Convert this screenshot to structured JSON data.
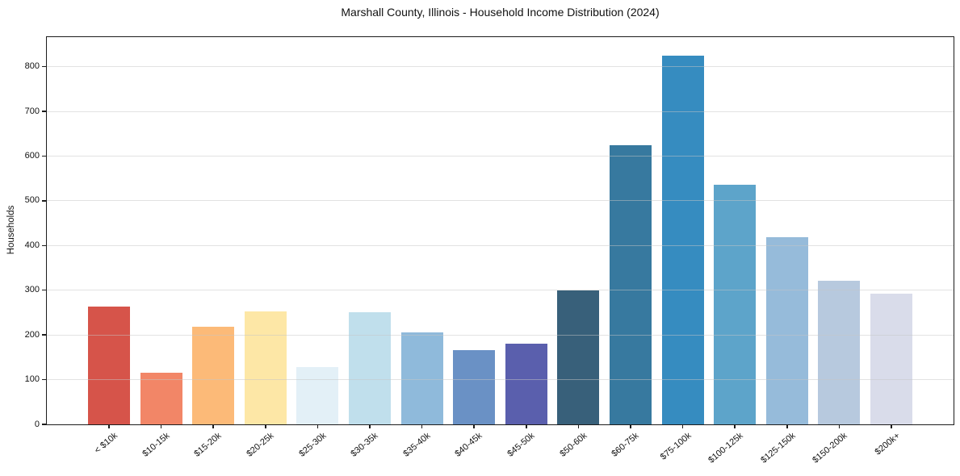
{
  "chart_data": {
    "type": "bar",
    "title": "Marshall County, Illinois - Household Income Distribution (2024)",
    "xlabel": "",
    "ylabel": "Households",
    "categories": [
      "< $10k",
      "$10-15k",
      "$15-20k",
      "$20-25k",
      "$25-30k",
      "$30-35k",
      "$35-40k",
      "$40-45k",
      "$45-50k",
      "$50-60k",
      "$60-75k",
      "$75-100k",
      "$100-125k",
      "$125-150k",
      "$150-200k",
      "$200k+"
    ],
    "values": [
      263,
      115,
      218,
      253,
      128,
      251,
      205,
      166,
      180,
      300,
      625,
      824,
      535,
      419,
      322,
      293
    ],
    "bar_colors": [
      "#d6544a",
      "#f28667",
      "#fcba78",
      "#fde7a6",
      "#e3f0f7",
      "#c0dfec",
      "#8fbadb",
      "#6a91c5",
      "#5a5fad",
      "#38607a",
      "#37799f",
      "#368cc0",
      "#5da4ca",
      "#96bbda",
      "#b7c9de",
      "#d9dcea"
    ],
    "yticks": [
      0,
      100,
      200,
      300,
      400,
      500,
      600,
      700,
      800
    ],
    "ylim": [
      0,
      866
    ],
    "grid": "horizontal-only",
    "legend": "none",
    "frame_color": "#1c1c1c",
    "gridline_color": "#c6c6c6"
  }
}
